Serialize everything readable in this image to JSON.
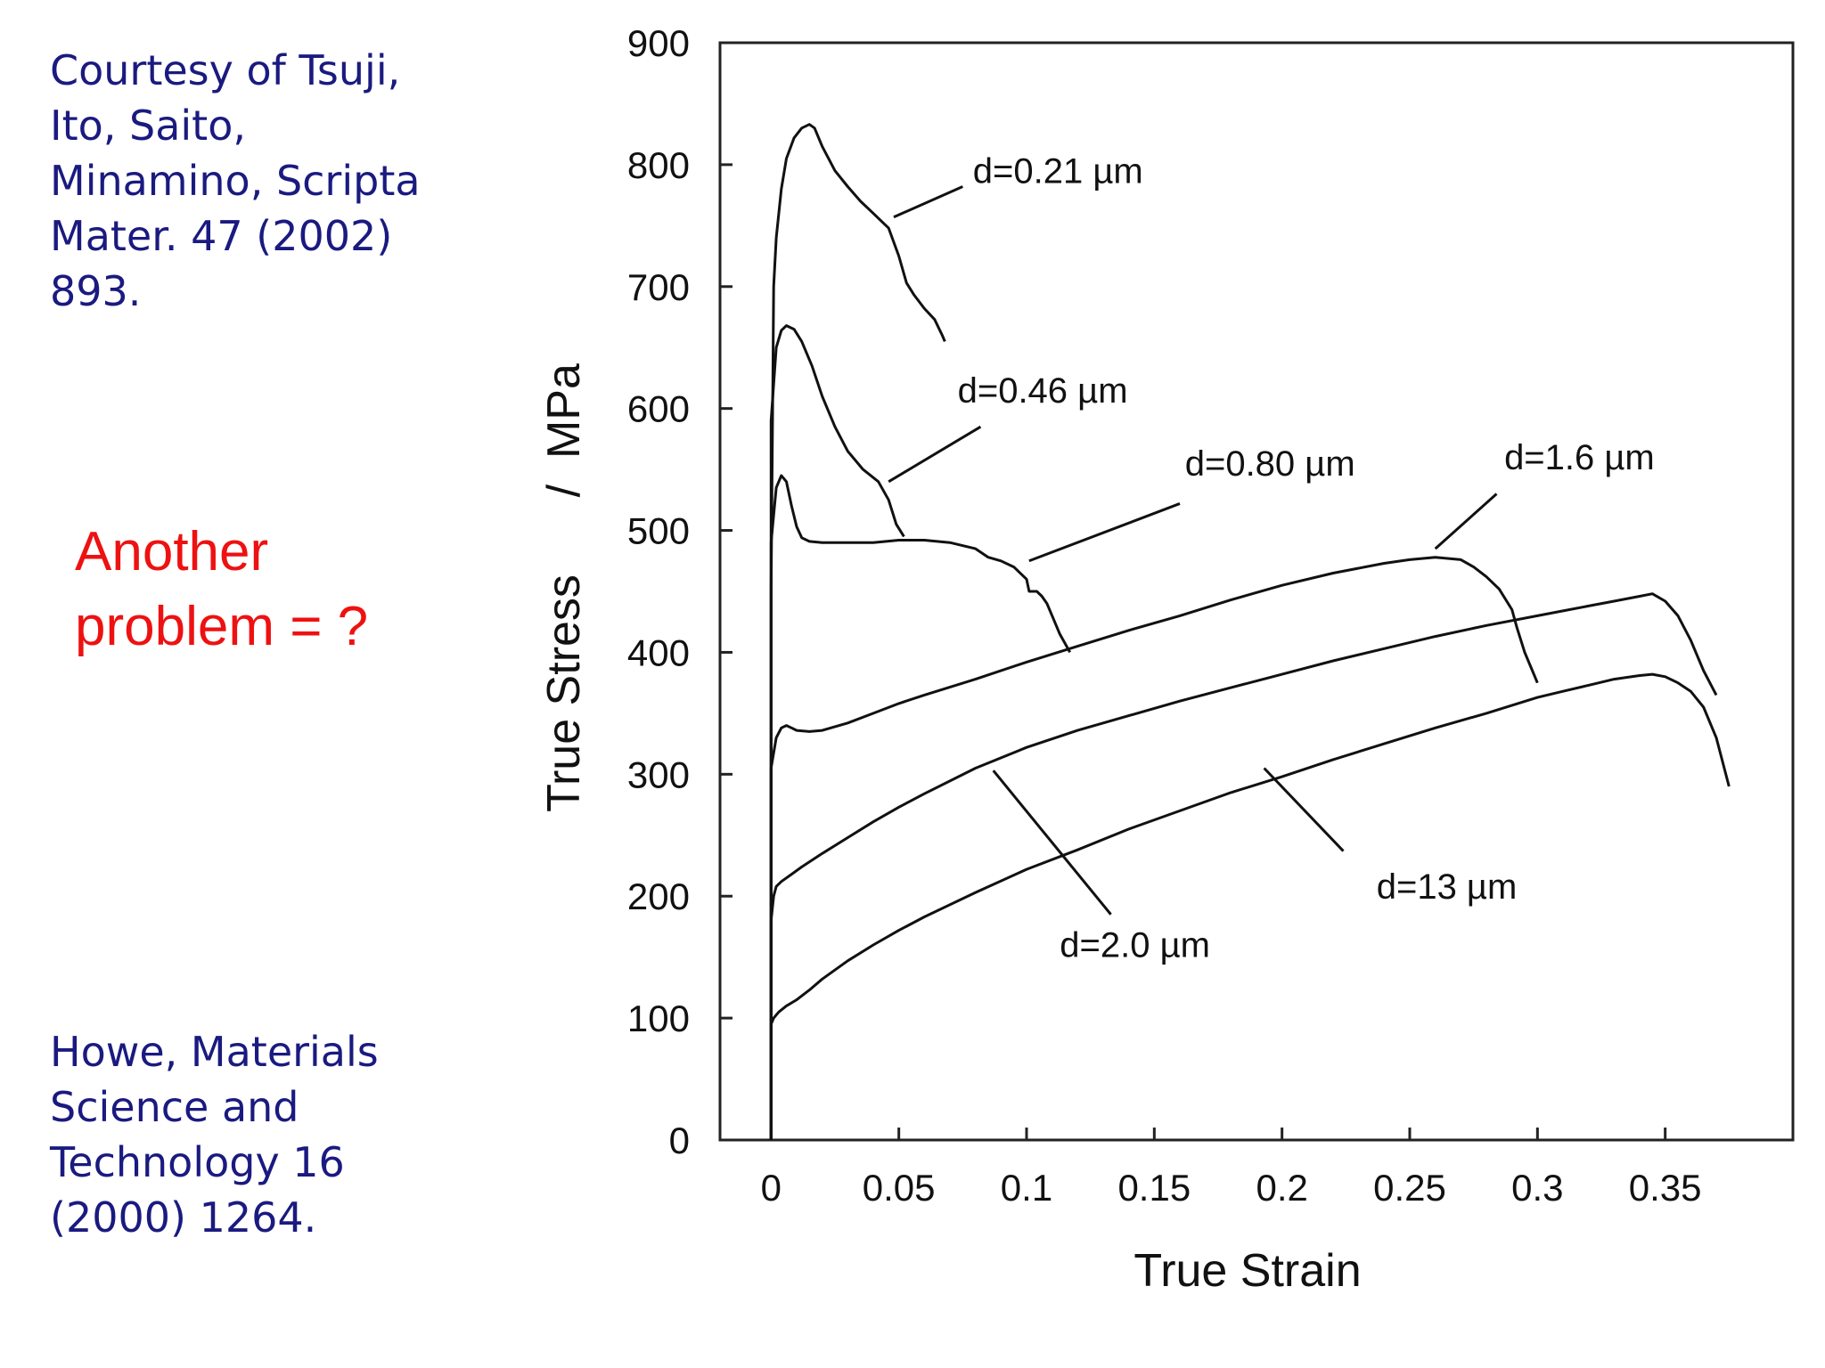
{
  "citations": {
    "top": "Courtesy of Tsuji,\nIto, Saito,\nMinamino, Scripta\nMater. 47 (2002)\n893.",
    "bottom": "Howe, Materials\nScience and\nTechnology 16\n(2000) 1264."
  },
  "question": "Another\nproblem = ?",
  "colors": {
    "citation": "#1a1a80",
    "question": "#ee1111",
    "curves": "#111111"
  },
  "chart_data": {
    "type": "line",
    "xlabel": "True Strain",
    "ylabel": "True Stress      /  MPa",
    "xlim": [
      -0.02,
      0.4
    ],
    "ylim": [
      0,
      900
    ],
    "grid": false,
    "xticks": [
      0,
      0.05,
      0.1,
      0.15,
      0.2,
      0.25,
      0.3,
      0.35
    ],
    "xtick_labels": [
      "0",
      "0.05",
      "0.1",
      "0.15",
      "0.2",
      "0.25",
      "0.3",
      "0.35"
    ],
    "yticks": [
      0,
      100,
      200,
      300,
      400,
      500,
      600,
      700,
      800,
      900
    ],
    "ytick_labels": [
      "0",
      "100",
      "200",
      "300",
      "400",
      "500",
      "600",
      "700",
      "800",
      "900"
    ],
    "series": [
      {
        "name": "d=0.21 µm",
        "label_at": [
          0.079,
          785
        ],
        "leader": [
          [
            0.075,
            782
          ],
          [
            0.048,
            757
          ]
        ],
        "x": [
          0,
          0,
          0.001,
          0.002,
          0.004,
          0.006,
          0.009,
          0.012,
          0.015,
          0.017,
          0.02,
          0.025,
          0.03,
          0.035,
          0.04,
          0.046,
          0.05,
          0.053,
          0.056,
          0.06,
          0.064,
          0.067,
          0.068
        ],
        "y": [
          0,
          450,
          700,
          740,
          780,
          805,
          822,
          830,
          833,
          830,
          815,
          795,
          782,
          770,
          760,
          748,
          725,
          703,
          693,
          682,
          673,
          660,
          655
        ]
      },
      {
        "name": "d=0.46 µm",
        "label_at": [
          0.073,
          605
        ],
        "leader": [
          [
            0.082,
            585
          ],
          [
            0.046,
            540
          ]
        ],
        "x": [
          0,
          0,
          0.002,
          0.004,
          0.006,
          0.009,
          0.012,
          0.016,
          0.02,
          0.025,
          0.03,
          0.036,
          0.042,
          0.046,
          0.049,
          0.052
        ],
        "y": [
          0,
          590,
          650,
          664,
          668,
          665,
          655,
          635,
          610,
          585,
          565,
          550,
          540,
          525,
          505,
          495
        ]
      },
      {
        "name": "d=0.80 µm",
        "label_at": [
          0.162,
          545
        ],
        "leader": [
          [
            0.16,
            522
          ],
          [
            0.101,
            475
          ]
        ],
        "x": [
          0,
          0,
          0.002,
          0.004,
          0.006,
          0.008,
          0.01,
          0.012,
          0.015,
          0.02,
          0.03,
          0.04,
          0.05,
          0.06,
          0.07,
          0.08,
          0.085,
          0.09,
          0.095,
          0.1,
          0.101,
          0.104,
          0.106,
          0.108,
          0.11,
          0.113,
          0.117
        ],
        "y": [
          0,
          490,
          535,
          545,
          540,
          520,
          503,
          494,
          491,
          490,
          490,
          490,
          492,
          492,
          490,
          485,
          478,
          475,
          470,
          460,
          450,
          450,
          446,
          440,
          430,
          415,
          400
        ]
      },
      {
        "name": "d=1.6 µm",
        "label_at": [
          0.287,
          550
        ],
        "leader": [
          [
            0.284,
            530
          ],
          [
            0.26,
            485
          ]
        ],
        "x": [
          0,
          0,
          0.002,
          0.004,
          0.006,
          0.008,
          0.01,
          0.015,
          0.02,
          0.03,
          0.04,
          0.05,
          0.06,
          0.08,
          0.1,
          0.12,
          0.14,
          0.16,
          0.18,
          0.2,
          0.22,
          0.24,
          0.25,
          0.26,
          0.27,
          0.275,
          0.28,
          0.285,
          0.29,
          0.292,
          0.295,
          0.298,
          0.3
        ],
        "y": [
          0,
          305,
          330,
          338,
          340,
          338,
          336,
          335,
          336,
          342,
          350,
          358,
          365,
          378,
          392,
          405,
          418,
          430,
          443,
          455,
          465,
          473,
          476,
          478,
          476,
          470,
          462,
          452,
          435,
          420,
          400,
          385,
          375
        ]
      },
      {
        "name": "d=2.0 µm",
        "label_at": [
          0.113,
          150
        ],
        "leader": [
          [
            0.133,
            185
          ],
          [
            0.087,
            303
          ]
        ],
        "x": [
          0,
          0,
          0.001,
          0.002,
          0.004,
          0.008,
          0.012,
          0.02,
          0.03,
          0.04,
          0.05,
          0.06,
          0.08,
          0.1,
          0.12,
          0.14,
          0.16,
          0.18,
          0.2,
          0.22,
          0.24,
          0.26,
          0.28,
          0.3,
          0.31,
          0.32,
          0.33,
          0.34,
          0.345,
          0.35,
          0.355,
          0.36,
          0.365,
          0.37
        ],
        "y": [
          0,
          180,
          200,
          208,
          212,
          218,
          224,
          235,
          248,
          261,
          273,
          284,
          305,
          322,
          336,
          348,
          360,
          371,
          382,
          393,
          403,
          413,
          422,
          430,
          434,
          438,
          442,
          446,
          448,
          442,
          430,
          410,
          385,
          365
        ]
      },
      {
        "name": "d=13 µm",
        "label_at": [
          0.237,
          198
        ],
        "leader": [
          [
            0.224,
            237
          ],
          [
            0.193,
            305
          ]
        ],
        "x": [
          0,
          0,
          0.001,
          0.003,
          0.006,
          0.01,
          0.015,
          0.02,
          0.03,
          0.04,
          0.05,
          0.06,
          0.08,
          0.1,
          0.12,
          0.14,
          0.16,
          0.18,
          0.2,
          0.22,
          0.24,
          0.26,
          0.28,
          0.3,
          0.31,
          0.32,
          0.33,
          0.34,
          0.345,
          0.35,
          0.355,
          0.36,
          0.365,
          0.37,
          0.375
        ],
        "y": [
          0,
          95,
          100,
          105,
          110,
          115,
          123,
          132,
          147,
          160,
          172,
          183,
          203,
          222,
          238,
          255,
          270,
          285,
          298,
          312,
          325,
          338,
          350,
          363,
          368,
          373,
          378,
          381,
          382,
          380,
          375,
          368,
          355,
          330,
          290
        ]
      }
    ]
  }
}
